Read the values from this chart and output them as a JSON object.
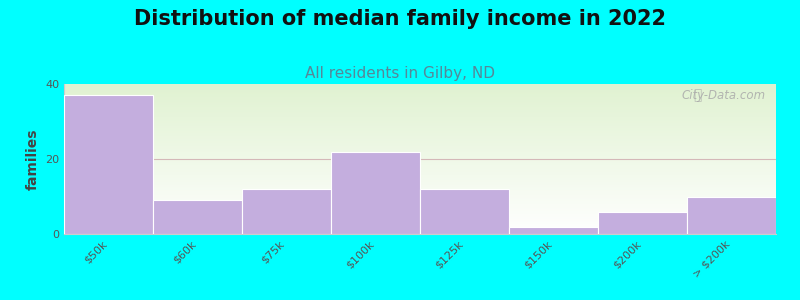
{
  "title": "Distribution of median family income in 2022",
  "subtitle": "All residents in Gilby, ND",
  "ylabel": "families",
  "categories": [
    "$50k",
    "$60k",
    "$75k",
    "$100k",
    "$125k",
    "$150k",
    "$200k",
    "> $200k"
  ],
  "values": [
    37,
    9,
    12,
    22,
    12,
    2,
    6,
    10
  ],
  "bar_color": "#c4aede",
  "bar_edgecolor": "#ffffff",
  "ylim": [
    0,
    40
  ],
  "yticks": [
    0,
    20,
    40
  ],
  "background_color": "#00FFFF",
  "plot_bg_color": "#eaf2e3",
  "grid_color": "#d4b8b8",
  "title_fontsize": 15,
  "subtitle_fontsize": 11,
  "ylabel_fontsize": 10,
  "tick_fontsize": 8,
  "watermark": "City-Data.com"
}
